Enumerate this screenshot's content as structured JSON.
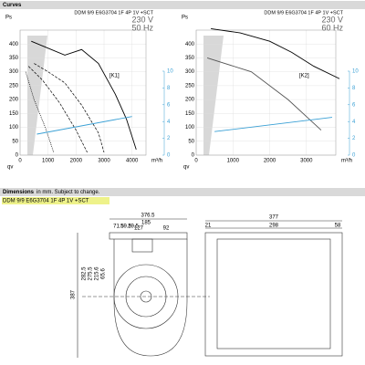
{
  "header": {
    "curves": "Curves",
    "dimensions": "Dimensions",
    "dimensions_note": "in mm. Subject to change.",
    "model": "DDM 9/9 E6G3704 1F 4P 1V +SCT"
  },
  "chart_data": [
    {
      "type": "line",
      "title": "DDM 9/9 E6G3704 1F 4P 1V +SCT",
      "voltage": "230 V",
      "frequency": "50 Hz",
      "curve_label": "[K1]",
      "y_label": "Ps",
      "x_label": "qv",
      "x_unit": "m³/h",
      "xlim": [
        0,
        4500
      ],
      "ylim": [
        0,
        450
      ],
      "xticks": [
        0,
        1000,
        2000,
        3000,
        4000
      ],
      "yticks": [
        0,
        50,
        100,
        150,
        200,
        250,
        300,
        350,
        400
      ],
      "y2lim": [
        0,
        10
      ],
      "y2ticks": [
        0,
        2,
        4,
        6,
        8,
        10
      ],
      "grid": true,
      "series": [
        {
          "color": "#000000",
          "style": "solid",
          "x": [
            400,
            1000,
            1600,
            2200,
            2800,
            3400,
            3800,
            4150
          ],
          "values": [
            410,
            385,
            360,
            380,
            330,
            220,
            130,
            20
          ]
        },
        {
          "color": "#000000",
          "style": "dashed",
          "x": [
            500,
            1000,
            1600,
            2200,
            2800,
            3000
          ],
          "values": [
            330,
            300,
            260,
            180,
            80,
            10
          ]
        },
        {
          "color": "#000000",
          "style": "dashed",
          "x": [
            300,
            800,
            1400,
            2000,
            2400
          ],
          "values": [
            320,
            270,
            190,
            90,
            10
          ]
        },
        {
          "color": "#000000",
          "style": "dotted",
          "x": [
            200,
            500,
            900,
            1200
          ],
          "values": [
            300,
            200,
            100,
            10
          ]
        },
        {
          "color": "#3aa0d5",
          "style": "solid",
          "axis": "y2",
          "x": [
            600,
            4000
          ],
          "values": [
            2.5,
            4.6
          ]
        }
      ]
    },
    {
      "type": "line",
      "title": "DDM 9/9 E6G3704 1F 4P 1V +SCT",
      "voltage": "230 V",
      "frequency": "60 Hz",
      "curve_label": "[K2]",
      "y_label": "Ps",
      "x_label": "qv",
      "x_unit": "m³/h",
      "xlim": [
        0,
        3800
      ],
      "ylim": [
        0,
        450
      ],
      "xticks": [
        0,
        1000,
        2000,
        3000
      ],
      "yticks": [
        0,
        50,
        100,
        150,
        200,
        250,
        300,
        350,
        400
      ],
      "y2lim": [
        0,
        10
      ],
      "y2ticks": [
        0,
        2,
        4,
        6,
        8,
        10
      ],
      "grid": true,
      "series": [
        {
          "color": "#000000",
          "style": "solid",
          "x": [
            400,
            1200,
            2000,
            2600,
            3200,
            3900
          ],
          "values": [
            455,
            440,
            410,
            370,
            320,
            275
          ]
        },
        {
          "color": "#555555",
          "style": "solid",
          "x": [
            300,
            1500,
            2500,
            3400
          ],
          "values": [
            350,
            300,
            200,
            90
          ]
        },
        {
          "color": "#3aa0d5",
          "style": "solid",
          "axis": "y2",
          "x": [
            500,
            3700
          ],
          "values": [
            2.8,
            4.5
          ]
        }
      ]
    }
  ],
  "dimensions": {
    "front": [
      "376.5",
      "185",
      "127",
      "92",
      "71.5",
      "59.5",
      "29.5",
      "387",
      "282.5",
      "275.5",
      "215.6",
      "65.6"
    ],
    "side": [
      "377",
      "21",
      "298",
      "58"
    ]
  }
}
